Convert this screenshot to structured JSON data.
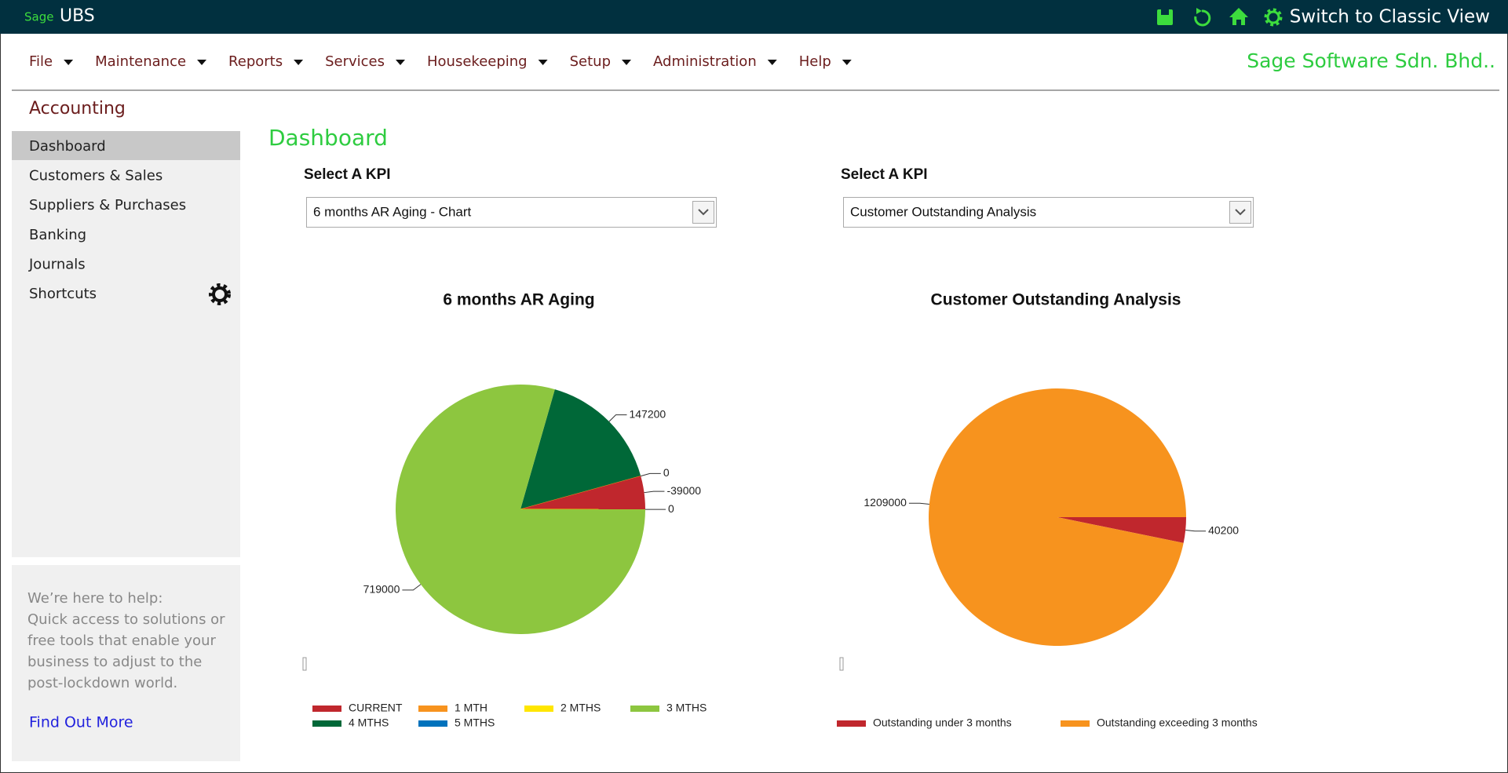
{
  "topbar": {
    "brand_small": "Sage",
    "brand": "UBS",
    "switch": "Switch to Classic View"
  },
  "menu": {
    "items": [
      "File",
      "Maintenance",
      "Reports",
      "Services",
      "Housekeeping",
      "Setup",
      "Administration",
      "Help"
    ],
    "company": "Sage Software Sdn. Bhd.."
  },
  "module": "Accounting",
  "sidebar": {
    "items": [
      "Dashboard",
      "Customers & Sales",
      "Suppliers & Purchases",
      "Banking",
      "Journals",
      "Shortcuts"
    ]
  },
  "help": {
    "lines": [
      "We’re here to help:",
      "Quick access to solutions or",
      "free tools that enable your",
      "business to adjust to the",
      "post-lockdown world."
    ],
    "link": "Find Out More"
  },
  "dashboard": {
    "title": "Dashboard",
    "kpis": [
      {
        "label": "Select A KPI",
        "selected": "6 months AR Aging - Chart"
      },
      {
        "label": "Select A KPI",
        "selected": "Customer Outstanding Analysis"
      }
    ]
  },
  "chart_data": [
    {
      "type": "pie",
      "title": "6 months AR Aging",
      "start_angle": 74,
      "direction": "clockwise",
      "slices": [
        {
          "color": "#006838",
          "value": 147200
        },
        {
          "color": "#f7931e",
          "value": 0
        },
        {
          "color": "#c0272d",
          "value": -39000
        },
        {
          "color": "#ffe600",
          "value": 0
        },
        {
          "color": "#8dc63f",
          "value": 719000
        }
      ],
      "legend": [
        {
          "name": "CURRENT",
          "color": "#c0272d"
        },
        {
          "name": "1 MTH",
          "color": "#f7931e"
        },
        {
          "name": "2 MTHS",
          "color": "#ffe600"
        },
        {
          "name": "3 MTHS",
          "color": "#8dc63f"
        },
        {
          "name": "4 MTHS",
          "color": "#006838"
        },
        {
          "name": "5 MTHS",
          "color": "#0072bc"
        }
      ]
    },
    {
      "type": "pie",
      "title": "Customer Outstanding Analysis",
      "start_angle": 0,
      "direction": "clockwise",
      "slices": [
        {
          "color": "#c0272d",
          "value": 40200
        },
        {
          "color": "#f7931e",
          "value": 1209000
        }
      ],
      "legend": [
        {
          "name": "Outstanding under 3 months",
          "color": "#c0272d"
        },
        {
          "name": "Outstanding exceeding 3 months",
          "color": "#f7931e"
        }
      ]
    }
  ]
}
